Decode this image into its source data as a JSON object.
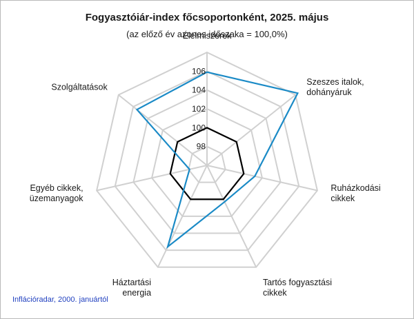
{
  "chart_data": {
    "type": "radar",
    "title": "Fogyasztóiár-index főcsoportonként, 2025. május",
    "subtitle": "(az előző év azonos időszaka = 100,0%)",
    "source": "Inflációradar, 2000. januártól",
    "axes": [
      [
        "Élelmiszerek"
      ],
      [
        "Szeszes italok,",
        "dohányáruk"
      ],
      [
        "Ruházkodási",
        "cikkek"
      ],
      [
        "Tartós fogyasztási",
        "cikkek"
      ],
      [
        "Háztartási",
        "energia"
      ],
      [
        "Egyéb cikkek,",
        "üzemanyagok"
      ],
      [
        "Szolgáltatások"
      ]
    ],
    "radial_ticks": [
      "98",
      "100",
      "102",
      "104",
      "106"
    ],
    "rmin": 96,
    "rmax": 108,
    "grid": true,
    "series": [
      {
        "values": [
          105.9,
          108.3,
          101.2,
          100.3,
          105.6,
          97.9,
          105.5
        ],
        "color": "#1a8ac6"
      },
      {
        "values": [
          100,
          100,
          100,
          100,
          100,
          100,
          100
        ],
        "color": "#000000"
      }
    ]
  }
}
